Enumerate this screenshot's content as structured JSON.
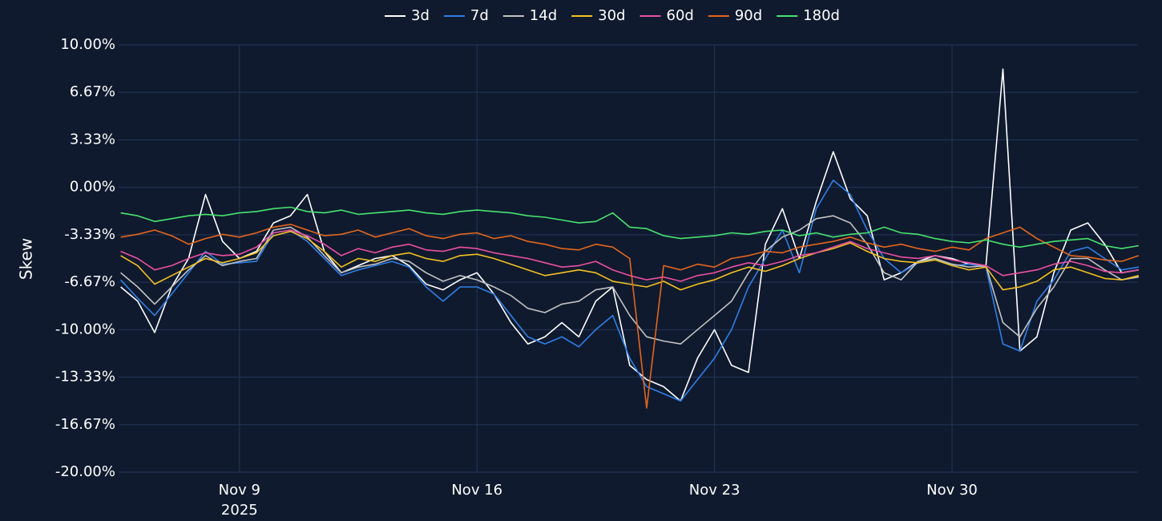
{
  "chart_data": {
    "type": "line",
    "y_label": "Skew",
    "legend": "top",
    "grid": true,
    "x": [
      "2025-11-05 12:00",
      "2025-11-06 00:00",
      "2025-11-06 12:00",
      "2025-11-07 00:00",
      "2025-11-07 12:00",
      "2025-11-08 00:00",
      "2025-11-08 12:00",
      "2025-11-09 00:00",
      "2025-11-09 12:00",
      "2025-11-10 00:00",
      "2025-11-10 12:00",
      "2025-11-11 00:00",
      "2025-11-11 12:00",
      "2025-11-12 00:00",
      "2025-11-12 12:00",
      "2025-11-13 00:00",
      "2025-11-13 12:00",
      "2025-11-14 00:00",
      "2025-11-14 12:00",
      "2025-11-15 00:00",
      "2025-11-15 12:00",
      "2025-11-16 00:00",
      "2025-11-16 12:00",
      "2025-11-17 00:00",
      "2025-11-17 12:00",
      "2025-11-18 00:00",
      "2025-11-18 12:00",
      "2025-11-19 00:00",
      "2025-11-19 12:00",
      "2025-11-20 00:00",
      "2025-11-20 12:00",
      "2025-11-21 00:00",
      "2025-11-21 12:00",
      "2025-11-22 00:00",
      "2025-11-22 12:00",
      "2025-11-23 00:00",
      "2025-11-23 12:00",
      "2025-11-24 00:00",
      "2025-11-24 12:00",
      "2025-11-25 00:00",
      "2025-11-25 12:00",
      "2025-11-26 00:00",
      "2025-11-26 12:00",
      "2025-11-27 00:00",
      "2025-11-27 12:00",
      "2025-11-28 00:00",
      "2025-11-28 12:00",
      "2025-11-29 00:00",
      "2025-11-29 12:00",
      "2025-11-30 00:00",
      "2025-11-30 12:00",
      "2025-12-01 00:00",
      "2025-12-01 12:00",
      "2025-12-02 00:00",
      "2025-12-02 12:00",
      "2025-12-03 00:00",
      "2025-12-03 12:00",
      "2025-12-04 00:00",
      "2025-12-04 12:00",
      "2025-12-05 00:00",
      "2025-12-05 12:00"
    ],
    "xlim": [
      "2025-11-05 10:30",
      "2025-12-05 11:30"
    ],
    "xticks": [
      {
        "value": "2025-11-09 00:00",
        "label": "Nov 9",
        "sublabel": "2025"
      },
      {
        "value": "2025-11-16 00:00",
        "label": "Nov 16"
      },
      {
        "value": "2025-11-23 00:00",
        "label": "Nov 23"
      },
      {
        "value": "2025-11-30 00:00",
        "label": "Nov 30"
      }
    ],
    "ylim": [
      -20,
      10
    ],
    "yticks": [
      {
        "value": 10,
        "label": "10.00%"
      },
      {
        "value": 6.67,
        "label": "6.67%"
      },
      {
        "value": 3.33,
        "label": "3.33%"
      },
      {
        "value": 0,
        "label": "0.00%"
      },
      {
        "value": -3.33,
        "label": "-3.33%"
      },
      {
        "value": -6.67,
        "label": "-6.67%"
      },
      {
        "value": -10,
        "label": "-10.00%"
      },
      {
        "value": -13.33,
        "label": "-13.33%"
      },
      {
        "value": -16.67,
        "label": "-16.67%"
      },
      {
        "value": -20,
        "label": "-20.00%"
      }
    ],
    "series": [
      {
        "name": "3d",
        "color": "#ffffff",
        "values": [
          -7.0,
          -8.0,
          -10.2,
          -7.0,
          -5.0,
          -0.5,
          -3.8,
          -5.0,
          -4.5,
          -2.5,
          -2.0,
          -0.5,
          -4.5,
          -6.0,
          -5.5,
          -5.0,
          -4.8,
          -5.5,
          -6.8,
          -7.2,
          -6.5,
          -6.0,
          -7.5,
          -9.5,
          -11.0,
          -10.5,
          -9.5,
          -10.5,
          -8.0,
          -7.0,
          -12.5,
          -13.5,
          -14.0,
          -15.0,
          -12.0,
          -10.0,
          -12.5,
          -13.0,
          -4.0,
          -1.5,
          -5.0,
          -1.0,
          2.5,
          -0.8,
          -2.0,
          -6.5,
          -6.0,
          -5.2,
          -4.8,
          -5.0,
          -5.4,
          -5.5,
          8.3,
          -11.5,
          -10.5,
          -6.0,
          -3.0,
          -2.5,
          -4.0,
          -6.0,
          -5.8
        ]
      },
      {
        "name": "7d",
        "color": "#2f7fe6",
        "values": [
          -6.5,
          -7.8,
          -9.0,
          -7.5,
          -6.0,
          -4.5,
          -5.4,
          -5.3,
          -5.2,
          -3.2,
          -3.0,
          -3.8,
          -5.0,
          -6.2,
          -5.8,
          -5.5,
          -5.2,
          -5.6,
          -7.0,
          -8.0,
          -7.0,
          -7.0,
          -7.5,
          -9.0,
          -10.5,
          -11.0,
          -10.5,
          -11.2,
          -10.0,
          -9.0,
          -12.0,
          -14.0,
          -14.5,
          -15.0,
          -13.5,
          -12.0,
          -10.0,
          -7.0,
          -5.0,
          -3.0,
          -6.0,
          -1.5,
          0.5,
          -0.5,
          -3.0,
          -5.0,
          -6.0,
          -5.3,
          -5.0,
          -5.5,
          -5.4,
          -5.6,
          -11.0,
          -11.5,
          -8.0,
          -6.5,
          -4.5,
          -4.2,
          -5.0,
          -5.8,
          -5.6
        ]
      },
      {
        "name": "14d",
        "color": "#c2c2c2",
        "values": [
          -6.0,
          -7.0,
          -8.2,
          -7.0,
          -5.8,
          -4.8,
          -5.5,
          -5.2,
          -5.0,
          -3.0,
          -2.8,
          -3.5,
          -4.8,
          -6.0,
          -5.6,
          -5.4,
          -5.0,
          -5.2,
          -6.0,
          -6.6,
          -6.2,
          -6.5,
          -7.0,
          -7.6,
          -8.5,
          -8.8,
          -8.2,
          -8.0,
          -7.2,
          -7.0,
          -9.0,
          -10.5,
          -10.8,
          -11.0,
          -10.0,
          -9.0,
          -8.0,
          -6.0,
          -4.5,
          -3.5,
          -3.0,
          -2.2,
          -2.0,
          -2.5,
          -4.0,
          -6.0,
          -6.5,
          -5.2,
          -5.0,
          -5.4,
          -5.6,
          -5.5,
          -9.5,
          -10.5,
          -8.5,
          -7.0,
          -5.0,
          -5.0,
          -5.8,
          -6.5,
          -6.3
        ]
      },
      {
        "name": "30d",
        "color": "#f4c020",
        "values": [
          -4.8,
          -5.5,
          -6.8,
          -6.2,
          -5.6,
          -5.0,
          -5.3,
          -5.0,
          -4.6,
          -3.4,
          -3.1,
          -3.6,
          -4.5,
          -5.6,
          -5.0,
          -5.2,
          -4.8,
          -4.6,
          -5.0,
          -5.2,
          -4.8,
          -4.7,
          -5.0,
          -5.4,
          -5.8,
          -6.2,
          -6.0,
          -5.8,
          -6.0,
          -6.6,
          -6.8,
          -7.0,
          -6.6,
          -7.2,
          -6.8,
          -6.5,
          -6.0,
          -5.6,
          -5.9,
          -5.5,
          -5.0,
          -4.6,
          -4.3,
          -3.9,
          -4.5,
          -5.0,
          -5.2,
          -5.3,
          -5.1,
          -5.5,
          -5.8,
          -5.6,
          -7.2,
          -7.0,
          -6.6,
          -5.8,
          -5.6,
          -6.0,
          -6.4,
          -6.5,
          -6.2
        ]
      },
      {
        "name": "60d",
        "color": "#ec4fa3",
        "values": [
          -4.5,
          -5.0,
          -5.8,
          -5.5,
          -5.0,
          -4.6,
          -4.8,
          -4.7,
          -4.2,
          -3.2,
          -3.0,
          -3.4,
          -4.0,
          -4.8,
          -4.3,
          -4.6,
          -4.2,
          -4.0,
          -4.4,
          -4.5,
          -4.2,
          -4.3,
          -4.6,
          -4.8,
          -5.0,
          -5.3,
          -5.6,
          -5.5,
          -5.2,
          -5.8,
          -6.2,
          -6.5,
          -6.3,
          -6.6,
          -6.2,
          -6.0,
          -5.6,
          -5.3,
          -5.5,
          -5.2,
          -4.8,
          -4.6,
          -4.2,
          -3.8,
          -4.3,
          -4.6,
          -4.9,
          -5.0,
          -4.8,
          -5.1,
          -5.3,
          -5.5,
          -6.2,
          -6.0,
          -5.8,
          -5.4,
          -5.2,
          -5.5,
          -5.9,
          -6.0,
          -5.8
        ]
      },
      {
        "name": "90d",
        "color": "#e5661c",
        "values": [
          -3.5,
          -3.3,
          -3.0,
          -3.4,
          -4.0,
          -3.6,
          -3.3,
          -3.5,
          -3.2,
          -2.8,
          -2.6,
          -3.0,
          -3.4,
          -3.3,
          -3.0,
          -3.5,
          -3.2,
          -2.9,
          -3.4,
          -3.6,
          -3.3,
          -3.2,
          -3.6,
          -3.4,
          -3.8,
          -4.0,
          -4.3,
          -4.4,
          -4.0,
          -4.2,
          -5.0,
          -15.5,
          -5.5,
          -5.8,
          -5.4,
          -5.6,
          -5.0,
          -4.8,
          -4.5,
          -4.6,
          -4.2,
          -4.0,
          -3.8,
          -3.5,
          -3.9,
          -4.2,
          -4.0,
          -4.3,
          -4.5,
          -4.2,
          -4.4,
          -3.6,
          -3.2,
          -2.8,
          -3.6,
          -4.2,
          -4.8,
          -4.9,
          -5.1,
          -5.2,
          -4.8
        ]
      },
      {
        "name": "180d",
        "color": "#47e36f",
        "values": [
          -1.8,
          -2.0,
          -2.4,
          -2.2,
          -2.0,
          -1.9,
          -2.0,
          -1.8,
          -1.7,
          -1.5,
          -1.4,
          -1.7,
          -1.8,
          -1.6,
          -1.9,
          -1.8,
          -1.7,
          -1.6,
          -1.8,
          -1.9,
          -1.7,
          -1.6,
          -1.7,
          -1.8,
          -2.0,
          -2.1,
          -2.3,
          -2.5,
          -2.4,
          -1.8,
          -2.8,
          -2.9,
          -3.4,
          -3.6,
          -3.5,
          -3.4,
          -3.2,
          -3.3,
          -3.1,
          -3.0,
          -3.4,
          -3.2,
          -3.5,
          -3.3,
          -3.2,
          -2.8,
          -3.2,
          -3.3,
          -3.6,
          -3.8,
          -3.9,
          -3.7,
          -4.0,
          -4.2,
          -4.0,
          -3.8,
          -3.7,
          -3.6,
          -4.1,
          -4.3,
          -4.1
        ]
      }
    ]
  }
}
